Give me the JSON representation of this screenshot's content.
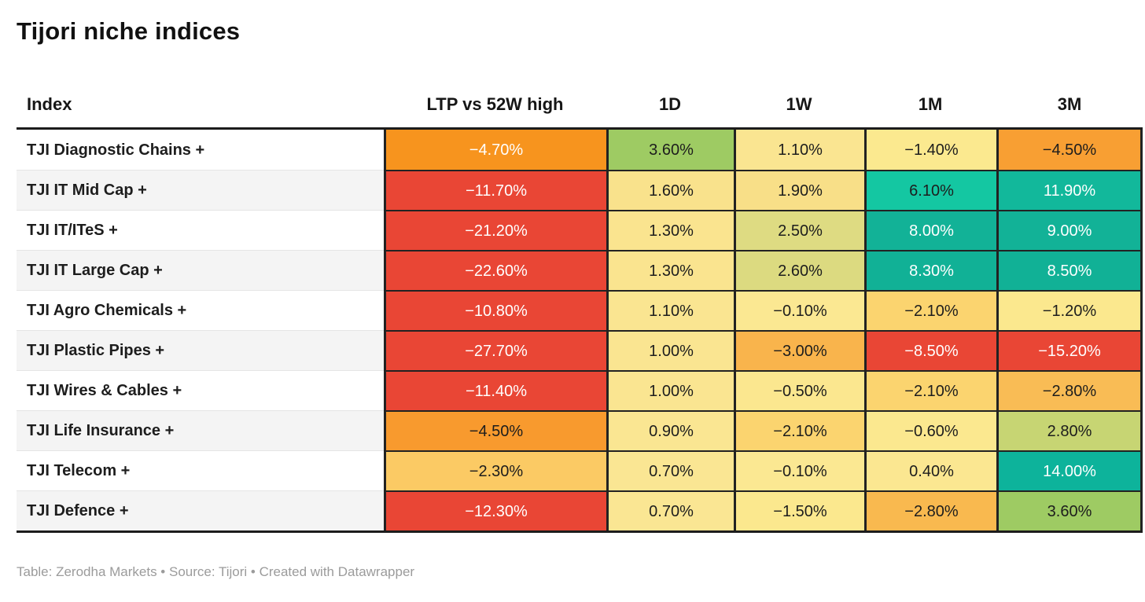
{
  "title": "Tijori niche indices",
  "footer": "Table: Zerodha Markets • Source: Tijori • Created with Datawrapper",
  "colors": {
    "red": "#e94635",
    "orange_strong": "#f7941e",
    "teal": "#12b297",
    "green": "#9ecb63",
    "pale_yellow": "#fae591",
    "dark_text": "#1d1d1d",
    "light_text": "#ffffff"
  },
  "table": {
    "columns": [
      {
        "label": "Index"
      },
      {
        "label": "LTP vs 52W high"
      },
      {
        "label": "1D"
      },
      {
        "label": "1W"
      },
      {
        "label": "1M"
      },
      {
        "label": "3M"
      }
    ],
    "rows": [
      {
        "index": "TJI Diagnostic Chains +",
        "cells": [
          {
            "text": "−4.70%",
            "bg": "#f7941e",
            "fg": "#ffffff"
          },
          {
            "text": "3.60%",
            "bg": "#9ecb63",
            "fg": "#1d1d1d"
          },
          {
            "text": "1.10%",
            "bg": "#fae591",
            "fg": "#1d1d1d"
          },
          {
            "text": "−1.40%",
            "bg": "#fbe98f",
            "fg": "#1d1d1d"
          },
          {
            "text": "−4.50%",
            "bg": "#f89f33",
            "fg": "#1d1d1d"
          }
        ]
      },
      {
        "index": "TJI IT Mid Cap +",
        "cells": [
          {
            "text": "−11.70%",
            "bg": "#e94635",
            "fg": "#ffffff"
          },
          {
            "text": "1.60%",
            "bg": "#f9e28c",
            "fg": "#1d1d1d"
          },
          {
            "text": "1.90%",
            "bg": "#f8df88",
            "fg": "#1d1d1d"
          },
          {
            "text": "6.10%",
            "bg": "#14c7a2",
            "fg": "#1d1d1d"
          },
          {
            "text": "11.90%",
            "bg": "#12b89b",
            "fg": "#ffffff"
          }
        ]
      },
      {
        "index": "TJI IT/ITeS +",
        "cells": [
          {
            "text": "−21.20%",
            "bg": "#e94635",
            "fg": "#ffffff"
          },
          {
            "text": "1.30%",
            "bg": "#fae48f",
            "fg": "#1d1d1d"
          },
          {
            "text": "2.50%",
            "bg": "#dedb82",
            "fg": "#1d1d1d"
          },
          {
            "text": "8.00%",
            "bg": "#12b297",
            "fg": "#ffffff"
          },
          {
            "text": "9.00%",
            "bg": "#12b297",
            "fg": "#ffffff"
          }
        ]
      },
      {
        "index": "TJI IT Large Cap +",
        "cells": [
          {
            "text": "−22.60%",
            "bg": "#e94635",
            "fg": "#ffffff"
          },
          {
            "text": "1.30%",
            "bg": "#fae48f",
            "fg": "#1d1d1d"
          },
          {
            "text": "2.60%",
            "bg": "#dcda80",
            "fg": "#1d1d1d"
          },
          {
            "text": "8.30%",
            "bg": "#11b196",
            "fg": "#ffffff"
          },
          {
            "text": "8.50%",
            "bg": "#11b196",
            "fg": "#ffffff"
          }
        ]
      },
      {
        "index": "TJI Agro Chemicals +",
        "cells": [
          {
            "text": "−10.80%",
            "bg": "#e94635",
            "fg": "#ffffff"
          },
          {
            "text": "1.10%",
            "bg": "#fae591",
            "fg": "#1d1d1d"
          },
          {
            "text": "−0.10%",
            "bg": "#fbe892",
            "fg": "#1d1d1d"
          },
          {
            "text": "−2.10%",
            "bg": "#fbd46f",
            "fg": "#1d1d1d"
          },
          {
            "text": "−1.20%",
            "bg": "#fbe88e",
            "fg": "#1d1d1d"
          }
        ]
      },
      {
        "index": "TJI Plastic Pipes +",
        "cells": [
          {
            "text": "−27.70%",
            "bg": "#e94635",
            "fg": "#ffffff"
          },
          {
            "text": "1.00%",
            "bg": "#fae591",
            "fg": "#1d1d1d"
          },
          {
            "text": "−3.00%",
            "bg": "#f9b44c",
            "fg": "#1d1d1d"
          },
          {
            "text": "−8.50%",
            "bg": "#e94635",
            "fg": "#ffffff"
          },
          {
            "text": "−15.20%",
            "bg": "#e94635",
            "fg": "#ffffff"
          }
        ]
      },
      {
        "index": "TJI Wires & Cables +",
        "cells": [
          {
            "text": "−11.40%",
            "bg": "#e94635",
            "fg": "#ffffff"
          },
          {
            "text": "1.00%",
            "bg": "#fae591",
            "fg": "#1d1d1d"
          },
          {
            "text": "−0.50%",
            "bg": "#fbe78f",
            "fg": "#1d1d1d"
          },
          {
            "text": "−2.10%",
            "bg": "#fbd46f",
            "fg": "#1d1d1d"
          },
          {
            "text": "−2.80%",
            "bg": "#f9bc55",
            "fg": "#1d1d1d"
          }
        ]
      },
      {
        "index": "TJI Life Insurance +",
        "cells": [
          {
            "text": "−4.50%",
            "bg": "#f89a2e",
            "fg": "#1d1d1d"
          },
          {
            "text": "0.90%",
            "bg": "#fae692",
            "fg": "#1d1d1d"
          },
          {
            "text": "−2.10%",
            "bg": "#fbd46f",
            "fg": "#1d1d1d"
          },
          {
            "text": "−0.60%",
            "bg": "#fbe88f",
            "fg": "#1d1d1d"
          },
          {
            "text": "2.80%",
            "bg": "#c7d573",
            "fg": "#1d1d1d"
          }
        ]
      },
      {
        "index": "TJI Telecom +",
        "cells": [
          {
            "text": "−2.30%",
            "bg": "#fbca64",
            "fg": "#1d1d1d"
          },
          {
            "text": "0.70%",
            "bg": "#fae693",
            "fg": "#1d1d1d"
          },
          {
            "text": "−0.10%",
            "bg": "#fbe892",
            "fg": "#1d1d1d"
          },
          {
            "text": "0.40%",
            "bg": "#fbe791",
            "fg": "#1d1d1d"
          },
          {
            "text": "14.00%",
            "bg": "#0db39b",
            "fg": "#ffffff"
          }
        ]
      },
      {
        "index": "TJI Defence +",
        "cells": [
          {
            "text": "−12.30%",
            "bg": "#e94635",
            "fg": "#ffffff"
          },
          {
            "text": "0.70%",
            "bg": "#fae693",
            "fg": "#1d1d1d"
          },
          {
            "text": "−1.50%",
            "bg": "#fbe88e",
            "fg": "#1d1d1d"
          },
          {
            "text": "−2.80%",
            "bg": "#f9b94f",
            "fg": "#1d1d1d"
          },
          {
            "text": "3.60%",
            "bg": "#9ecb63",
            "fg": "#1d1d1d"
          }
        ]
      }
    ]
  },
  "chart_data": {
    "type": "table",
    "title": "Tijori niche indices",
    "row_label_column": "Index",
    "rows": [
      "TJI Diagnostic Chains +",
      "TJI IT Mid Cap +",
      "TJI IT/ITeS +",
      "TJI IT Large Cap +",
      "TJI Agro Chemicals +",
      "TJI Plastic Pipes +",
      "TJI Wires & Cables +",
      "TJI Life Insurance +",
      "TJI Telecom +",
      "TJI Defence +"
    ],
    "columns": [
      "LTP vs 52W high",
      "1D",
      "1W",
      "1M",
      "3M"
    ],
    "values_pct": [
      [
        -4.7,
        3.6,
        1.1,
        -1.4,
        -4.5
      ],
      [
        -11.7,
        1.6,
        1.9,
        6.1,
        11.9
      ],
      [
        -21.2,
        1.3,
        2.5,
        8.0,
        9.0
      ],
      [
        -22.6,
        1.3,
        2.6,
        8.3,
        8.5
      ],
      [
        -10.8,
        1.1,
        -0.1,
        -2.1,
        -1.2
      ],
      [
        -27.7,
        1.0,
        -3.0,
        -8.5,
        -15.2
      ],
      [
        -11.4,
        1.0,
        -0.5,
        -2.1,
        -2.8
      ],
      [
        -4.5,
        0.9,
        -2.1,
        -0.6,
        2.8
      ],
      [
        -2.3,
        0.7,
        -0.1,
        0.4,
        14.0
      ],
      [
        -12.3,
        0.7,
        -1.5,
        -2.8,
        3.6
      ]
    ],
    "color_scale": "diverging red→yellow→green/teal heatmap on cell backgrounds",
    "footer": "Table: Zerodha Markets • Source: Tijori • Created with Datawrapper"
  }
}
